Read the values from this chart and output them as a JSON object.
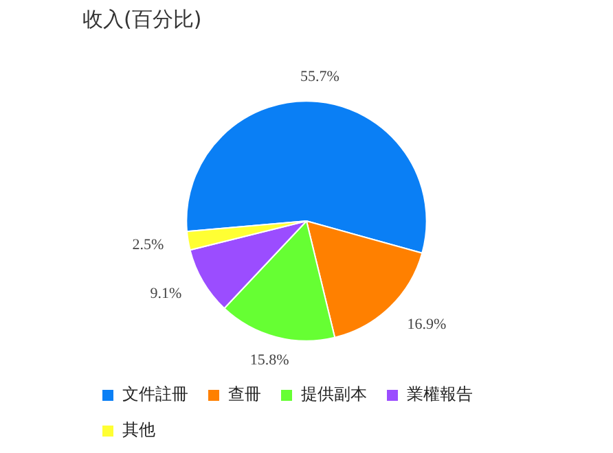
{
  "chart_data": {
    "type": "pie",
    "title": "收入(百分比)",
    "categories": [
      "文件註冊",
      "查冊",
      "提供副本",
      "業權報告",
      "其他"
    ],
    "values": [
      55.7,
      16.9,
      15.8,
      9.1,
      2.5
    ],
    "colors": [
      "#0a7ff5",
      "#ff8000",
      "#66ff33",
      "#9b4dff",
      "#ffff33"
    ],
    "value_labels": [
      "55.7%",
      "16.9%",
      "15.8%",
      "9.1%",
      "2.5%"
    ],
    "legend": "bottom"
  }
}
